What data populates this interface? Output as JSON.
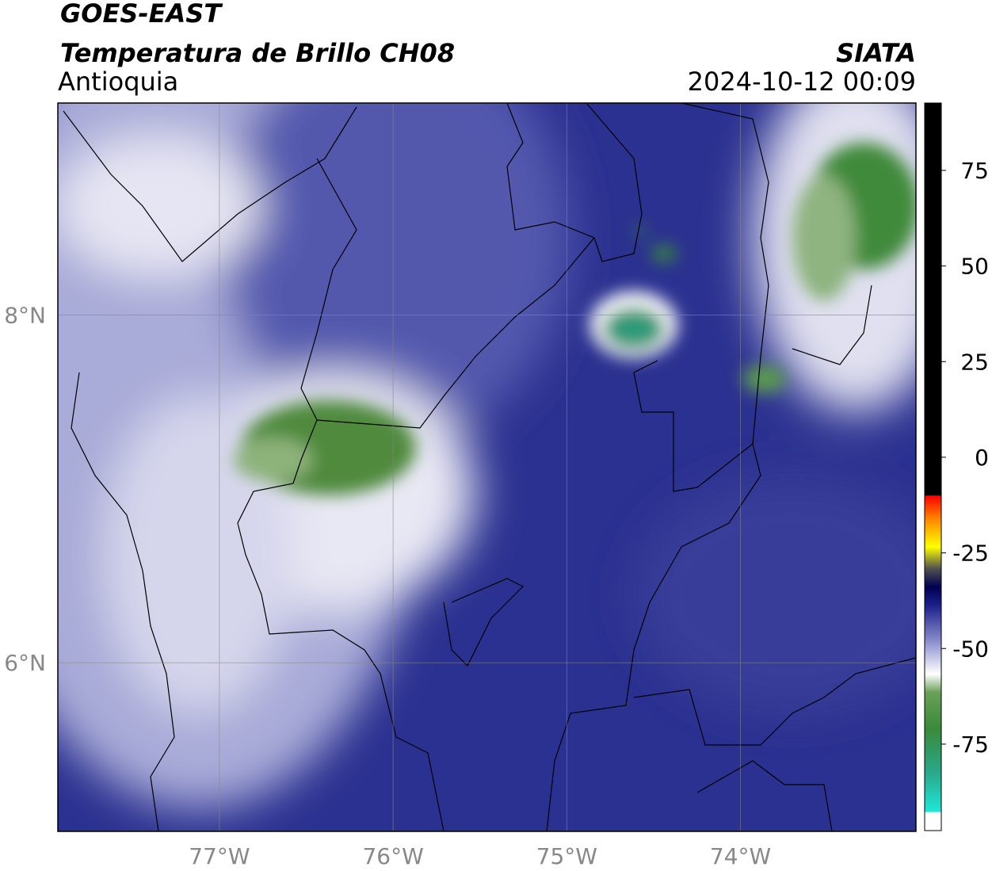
{
  "header": {
    "title": "GOES-EAST",
    "subtitle": "Temperatura de Brillo CH08",
    "region": "Antioquia",
    "source": "SIATA",
    "datetime": "2024-10-12 00:09"
  },
  "map": {
    "xlim": [
      -77.93,
      -72.99
    ],
    "ylim": [
      5.03,
      9.22
    ],
    "xticks": [
      {
        "value": -77,
        "label": "77°W"
      },
      {
        "value": -76,
        "label": "76°W"
      },
      {
        "value": -75,
        "label": "75°W"
      },
      {
        "value": -74,
        "label": "74°W"
      }
    ],
    "yticks": [
      {
        "value": 6,
        "label": "6°N"
      },
      {
        "value": 8,
        "label": "8°N"
      }
    ],
    "grid": true
  },
  "colorbar": {
    "lim": [
      -97.6,
      92.6
    ],
    "ticks": [
      -75,
      -50,
      -25,
      0,
      25,
      50,
      75
    ]
  }
}
